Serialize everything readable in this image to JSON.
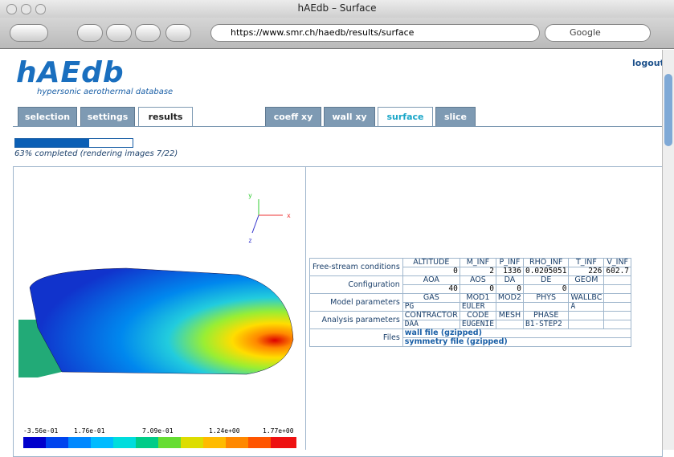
{
  "window": {
    "title": "hAEdb – Surface",
    "url": "https://www.smr.ch/haedb/results/surface",
    "search": "Google"
  },
  "header": {
    "logo": "hAEdb",
    "subtitle": "hypersonic aerothermal database",
    "logout": "logout"
  },
  "tabs": {
    "left": [
      "selection",
      "settings",
      "results"
    ],
    "right": [
      "coeff xy",
      "wall xy",
      "surface",
      "slice"
    ]
  },
  "progress": {
    "value": 63,
    "label": "63% completed (rendering images 7/22)"
  },
  "axes": {
    "y": "y",
    "x": "x",
    "z": "z"
  },
  "colorbar": [
    "-3.56e-01",
    "1.76e-01",
    "7.09e-01",
    "1.24e+00",
    "1.77e+00"
  ],
  "table": {
    "groups": [
      {
        "label": "Free-stream conditions",
        "header": [
          "ALTITUDE",
          "M_INF",
          "P_INF",
          "RHO_INF",
          "T_INF",
          "V_INF"
        ],
        "values": [
          0,
          2,
          1336,
          0.0205051,
          226,
          602.7
        ]
      },
      {
        "label": "Configuration",
        "header": [
          "AOA",
          "AOS",
          "DA",
          "DE",
          "GEOM"
        ],
        "values": [
          40,
          0,
          0,
          0,
          null
        ]
      },
      {
        "label": "Model parameters",
        "header": [
          "GAS",
          "MOD1",
          "MOD2",
          "PHYS",
          "WALLBC"
        ],
        "values": [
          "PG",
          "EULER",
          null,
          null,
          "A"
        ]
      },
      {
        "label": "Analysis parameters",
        "header": [
          "CONTRACTOR",
          "CODE",
          "MESH",
          "PHASE"
        ],
        "values": [
          "DAA",
          "EUGENIE",
          null,
          "B1-STEP2"
        ]
      }
    ],
    "files": {
      "label": "Files",
      "links": [
        "wall file (gzipped)",
        "symmetry file (gzipped)"
      ]
    }
  }
}
